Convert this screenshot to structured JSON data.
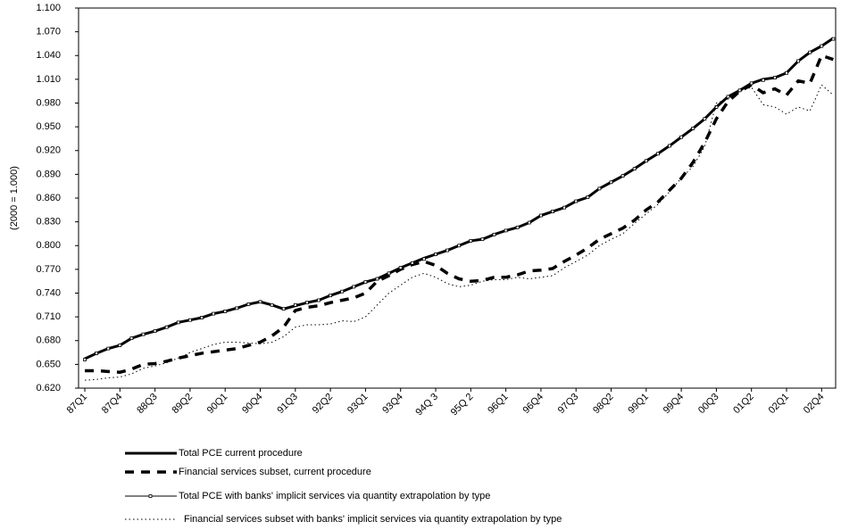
{
  "chart_data": {
    "type": "line",
    "y_label": "(2000 = 1.000)",
    "categories": [
      "87Q1",
      null,
      null,
      "87Q4",
      null,
      null,
      "88Q3",
      null,
      null,
      "89Q2",
      null,
      null,
      "90Q1",
      null,
      null,
      "90Q4",
      null,
      null,
      "91Q3",
      null,
      null,
      "92Q2",
      null,
      null,
      "93Q1",
      null,
      null,
      "93Q4",
      null,
      null,
      "94Q 3",
      null,
      null,
      "95Q 2",
      null,
      null,
      "96Q1",
      null,
      null,
      "96Q4",
      null,
      null,
      "97Q3",
      null,
      null,
      "98Q2",
      null,
      null,
      "99Q1",
      null,
      null,
      "99Q4",
      null,
      null,
      "00Q3",
      null,
      null,
      "01Q2",
      null,
      null,
      "02Q1",
      null,
      null,
      "02Q4",
      null
    ],
    "ylim": [
      0.62,
      1.1
    ],
    "yticks": [
      {
        "value": 0.62,
        "label": "0.620"
      },
      {
        "value": 0.65,
        "label": "0.650"
      },
      {
        "value": 0.68,
        "label": "0.680"
      },
      {
        "value": 0.71,
        "label": "0.710"
      },
      {
        "value": 0.74,
        "label": "0.740"
      },
      {
        "value": 0.77,
        "label": "0.770"
      },
      {
        "value": 0.8,
        "label": "0.800"
      },
      {
        "value": 0.83,
        "label": "0.830"
      },
      {
        "value": 0.86,
        "label": "0.860"
      },
      {
        "value": 0.89,
        "label": "0.890"
      },
      {
        "value": 0.92,
        "label": "0.920"
      },
      {
        "value": 0.95,
        "label": "0.950"
      },
      {
        "value": 0.98,
        "label": "0.980"
      },
      {
        "value": 1.01,
        "label": "1.010"
      },
      {
        "value": 1.04,
        "label": "1.040"
      },
      {
        "value": 1.07,
        "label": "1.070"
      },
      {
        "value": 1.1,
        "label": "1.100"
      }
    ],
    "grid": false,
    "legend": "bottom",
    "series": [
      {
        "name": "Total PCE current procedure",
        "color": "#000000",
        "values": [
          0.657,
          0.664,
          0.67,
          0.674,
          0.683,
          0.688,
          0.692,
          0.697,
          0.703,
          0.706,
          0.709,
          0.714,
          0.717,
          0.721,
          0.726,
          0.729,
          0.725,
          0.72,
          0.724,
          0.728,
          0.731,
          0.737,
          0.742,
          0.748,
          0.754,
          0.758,
          0.765,
          0.772,
          0.778,
          0.784,
          0.789,
          0.794,
          0.8,
          0.806,
          0.808,
          0.814,
          0.819,
          0.823,
          0.829,
          0.838,
          0.843,
          0.848,
          0.856,
          0.861,
          0.872,
          0.88,
          0.888,
          0.897,
          0.907,
          0.916,
          0.926,
          0.937,
          0.948,
          0.96,
          0.975,
          0.988,
          0.996,
          1.005,
          1.01,
          1.012,
          1.018,
          1.033,
          1.044,
          1.052,
          1.062
        ]
      },
      {
        "name": "Financial services subset, current procedure",
        "color": "#000000",
        "values": [
          0.642,
          0.642,
          0.641,
          0.64,
          0.644,
          0.65,
          0.651,
          0.654,
          0.658,
          0.661,
          0.664,
          0.666,
          0.668,
          0.67,
          0.674,
          0.678,
          0.686,
          0.697,
          0.718,
          0.722,
          0.724,
          0.728,
          0.731,
          0.734,
          0.74,
          0.755,
          0.762,
          0.77,
          0.776,
          0.78,
          0.775,
          0.765,
          0.758,
          0.755,
          0.756,
          0.76,
          0.76,
          0.763,
          0.768,
          0.769,
          0.771,
          0.78,
          0.788,
          0.797,
          0.808,
          0.815,
          0.822,
          0.832,
          0.845,
          0.855,
          0.87,
          0.885,
          0.905,
          0.93,
          0.96,
          0.982,
          0.995,
          1.003,
          0.993,
          0.998,
          0.99,
          1.008,
          1.005,
          1.04,
          1.035
        ]
      },
      {
        "name": "Total PCE with  banks' implicit services via quantity extrapolation by type",
        "color": "#000000",
        "values": [
          0.656,
          0.664,
          0.67,
          0.674,
          0.683,
          0.688,
          0.692,
          0.697,
          0.703,
          0.706,
          0.709,
          0.714,
          0.717,
          0.721,
          0.726,
          0.729,
          0.725,
          0.72,
          0.725,
          0.728,
          0.731,
          0.737,
          0.742,
          0.748,
          0.754,
          0.758,
          0.765,
          0.772,
          0.778,
          0.783,
          0.789,
          0.794,
          0.8,
          0.806,
          0.808,
          0.814,
          0.819,
          0.823,
          0.829,
          0.838,
          0.843,
          0.848,
          0.856,
          0.861,
          0.872,
          0.88,
          0.888,
          0.897,
          0.907,
          0.916,
          0.926,
          0.937,
          0.948,
          0.96,
          0.975,
          0.988,
          0.996,
          1.005,
          1.009,
          1.012,
          1.018,
          1.033,
          1.044,
          1.052,
          1.061
        ]
      },
      {
        "name": "Financial services subset with banks' implicit services via quantity extrapolation by type",
        "color": "#000000",
        "values": [
          0.63,
          0.631,
          0.633,
          0.634,
          0.638,
          0.645,
          0.648,
          0.652,
          0.658,
          0.665,
          0.67,
          0.675,
          0.678,
          0.678,
          0.677,
          0.676,
          0.678,
          0.685,
          0.697,
          0.7,
          0.7,
          0.701,
          0.705,
          0.704,
          0.71,
          0.725,
          0.74,
          0.75,
          0.76,
          0.765,
          0.76,
          0.752,
          0.748,
          0.75,
          0.755,
          0.757,
          0.757,
          0.76,
          0.758,
          0.76,
          0.762,
          0.772,
          0.78,
          0.788,
          0.8,
          0.808,
          0.815,
          0.828,
          0.84,
          0.852,
          0.868,
          0.885,
          0.9,
          0.925,
          0.98,
          0.985,
          0.995,
          1.0,
          0.978,
          0.975,
          0.966,
          0.975,
          0.97,
          1.003,
          0.99
        ]
      }
    ]
  }
}
